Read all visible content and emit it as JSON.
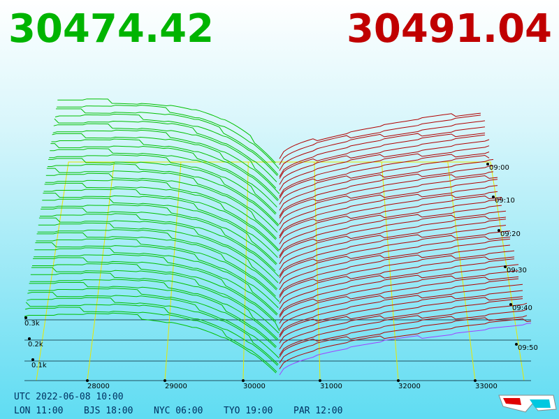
{
  "prices": {
    "bid": "30474.42",
    "ask": "30491.04"
  },
  "price_axis": [
    "28000",
    "29000",
    "30000",
    "31000",
    "32000",
    "33000"
  ],
  "depth_axis": [
    "0.1k",
    "0.2k",
    "0.3k"
  ],
  "time_axis": [
    "09:00",
    "09:10",
    "09:20",
    "09:30",
    "09:40",
    "09:50"
  ],
  "clock": {
    "utc": "UTC 2022-06-08 10:00",
    "zones": [
      "LON 11:00",
      "BJS 18:00",
      "NYC 06:00",
      "TYO 19:00",
      "PAR 12:00"
    ]
  }
}
